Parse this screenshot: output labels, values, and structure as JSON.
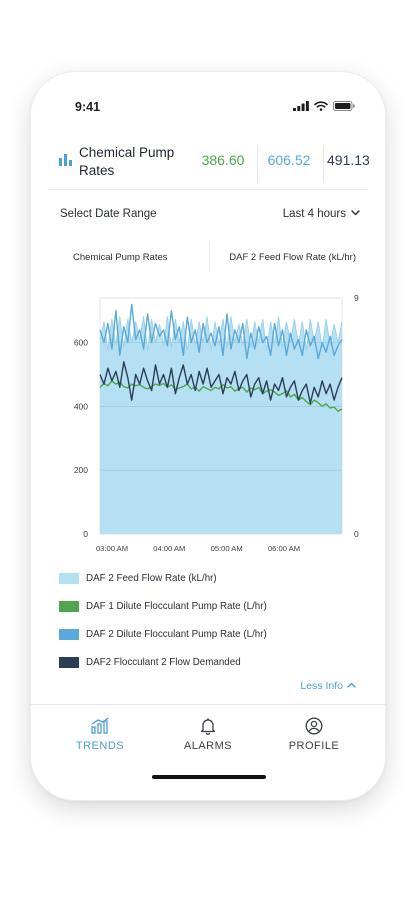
{
  "status_bar": {
    "time": "9:41"
  },
  "header": {
    "title": "Chemical Pump Rates",
    "kpis": [
      {
        "value": "386.60",
        "color": "#4fa64f"
      },
      {
        "value": "606.52",
        "color": "#59a9da"
      },
      {
        "value": "491.13",
        "color": "#2d3d55"
      }
    ]
  },
  "date_range": {
    "label": "Select Date Range",
    "value": "Last 4 hours"
  },
  "chart_tabs": {
    "left": "Chemical Pump Rates",
    "right": "DAF 2 Feed Flow Rate (kL/hr)"
  },
  "chart_data": {
    "type": "line",
    "x_ticks": [
      "03:00 AM",
      "04:00 AM",
      "05:00 AM",
      "06:00 AM"
    ],
    "y_left": {
      "ticks": [
        "0",
        "200",
        "400",
        "600"
      ],
      "lim": [
        0,
        740
      ]
    },
    "y_right": {
      "ticks": [
        "0",
        "9"
      ],
      "lim": [
        0,
        9
      ]
    },
    "grid": true,
    "series": [
      {
        "name": "DAF 2 Feed Flow Rate (kL/hr)",
        "axis": "right",
        "color": "#b5dff2",
        "style": "area",
        "values": [
          7.4,
          8.1,
          7.0,
          8.2,
          7.2,
          8.3,
          7.1,
          8.2,
          7.3,
          8.1,
          7.4,
          8.3,
          7.0,
          8.2,
          7.3,
          8.0,
          7.2,
          8.3,
          7.1,
          8.2,
          7.3,
          8.1,
          7.0,
          8.2,
          7.2,
          8.1,
          7.3,
          8.3,
          7.0,
          8.1,
          7.2,
          8.2,
          7.1,
          8.3,
          7.3,
          8.0,
          7.2,
          8.2,
          7.1,
          8.1,
          7.3,
          8.2,
          7.0,
          8.1,
          7.2,
          8.3,
          7.1,
          8.1,
          7.3,
          8.2,
          7.2,
          8.1,
          7.0,
          8.2,
          7.3,
          8.1,
          7.1,
          8.2,
          7.2,
          8.0,
          7.3,
          8.1
        ]
      },
      {
        "name": "DAF 1 Dilute Flocculant Pump Rate (L/hr)",
        "axis": "left",
        "color": "#4fa64f",
        "style": "line",
        "values": [
          460,
          472,
          465,
          480,
          470,
          476,
          462,
          458,
          470,
          465,
          468,
          460,
          455,
          462,
          470,
          466,
          472,
          460,
          468,
          452,
          458,
          462,
          470,
          455,
          460,
          448,
          462,
          456,
          450,
          460,
          455,
          468,
          458,
          462,
          448,
          456,
          460,
          445,
          458,
          452,
          460,
          440,
          448,
          452,
          445,
          435,
          440,
          450,
          430,
          438,
          420,
          428,
          415,
          405,
          420,
          412,
          400,
          408,
          395,
          398,
          385,
          392
        ]
      },
      {
        "name": "DAF 2 Dilute Flocculant Pump Rate (L/hr)",
        "axis": "left",
        "color": "#59a9da",
        "style": "line",
        "values": [
          640,
          600,
          660,
          580,
          700,
          560,
          650,
          600,
          720,
          610,
          640,
          580,
          690,
          600,
          660,
          620,
          640,
          590,
          700,
          610,
          650,
          560,
          680,
          600,
          640,
          570,
          660,
          600,
          630,
          590,
          650,
          560,
          690,
          580,
          640,
          600,
          660,
          550,
          630,
          580,
          650,
          600,
          620,
          560,
          660,
          590,
          640,
          560,
          630,
          580,
          610,
          560,
          640,
          590,
          620,
          550,
          600,
          570,
          620,
          560,
          590,
          610
        ]
      },
      {
        "name": "DAF2 Flocculant 2 Flow Demanded",
        "axis": "left",
        "color": "#2d3d55",
        "style": "line",
        "values": [
          500,
          470,
          520,
          480,
          510,
          460,
          540,
          490,
          420,
          500,
          470,
          520,
          480,
          450,
          530,
          470,
          500,
          460,
          520,
          440,
          490,
          530,
          470,
          500,
          450,
          510,
          470,
          520,
          460,
          480,
          500,
          440,
          490,
          470,
          510,
          450,
          480,
          500,
          430,
          470,
          490,
          440,
          480,
          420,
          470,
          450,
          490,
          430,
          460,
          480,
          420,
          450,
          470,
          410,
          460,
          430,
          480,
          440,
          470,
          420,
          460,
          490
        ]
      }
    ]
  },
  "legend_items": [
    {
      "label": "DAF 2 Feed Flow Rate (kL/hr)",
      "color": "#b5dff2"
    },
    {
      "label": "DAF 1 Dilute Flocculant Pump Rate (L/hr)",
      "color": "#4fa64f"
    },
    {
      "label": "DAF 2 Dilute Flocculant Pump Rate (L/hr)",
      "color": "#59a9da"
    },
    {
      "label": "DAF2 Flocculant 2 Flow Demanded",
      "color": "#2d3d55"
    }
  ],
  "less_info": "Less Info",
  "nav": {
    "trends": "TRENDS",
    "alarms": "ALARMS",
    "profile": "PROFILE",
    "active_color": "#4a9fd5"
  }
}
